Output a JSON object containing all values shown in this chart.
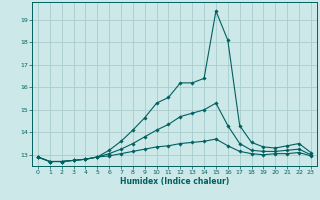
{
  "xlabel": "Humidex (Indice chaleur)",
  "bg_color": "#cde8e8",
  "grid_color": "#aacccc",
  "line_color": "#006060",
  "xlim": [
    -0.5,
    23.5
  ],
  "ylim": [
    12.5,
    19.8
  ],
  "yticks": [
    13,
    14,
    15,
    16,
    17,
    18,
    19
  ],
  "xticks": [
    0,
    1,
    2,
    3,
    4,
    5,
    6,
    7,
    8,
    9,
    10,
    11,
    12,
    13,
    14,
    15,
    16,
    17,
    18,
    19,
    20,
    21,
    22,
    23
  ],
  "line1": [
    12.9,
    12.7,
    12.7,
    12.75,
    12.8,
    12.9,
    13.2,
    13.6,
    14.1,
    14.65,
    15.3,
    15.55,
    16.2,
    16.2,
    16.4,
    19.4,
    18.1,
    14.3,
    13.55,
    13.35,
    13.3,
    13.4,
    13.5,
    13.1
  ],
  "line2": [
    12.9,
    12.7,
    12.7,
    12.75,
    12.8,
    12.9,
    13.05,
    13.25,
    13.5,
    13.8,
    14.1,
    14.35,
    14.7,
    14.85,
    15.0,
    15.3,
    14.3,
    13.5,
    13.2,
    13.15,
    13.15,
    13.2,
    13.25,
    13.0
  ],
  "line3": [
    12.9,
    12.7,
    12.7,
    12.75,
    12.8,
    12.9,
    12.95,
    13.05,
    13.15,
    13.25,
    13.35,
    13.4,
    13.5,
    13.55,
    13.6,
    13.7,
    13.4,
    13.15,
    13.05,
    13.0,
    13.05,
    13.05,
    13.1,
    12.95
  ]
}
